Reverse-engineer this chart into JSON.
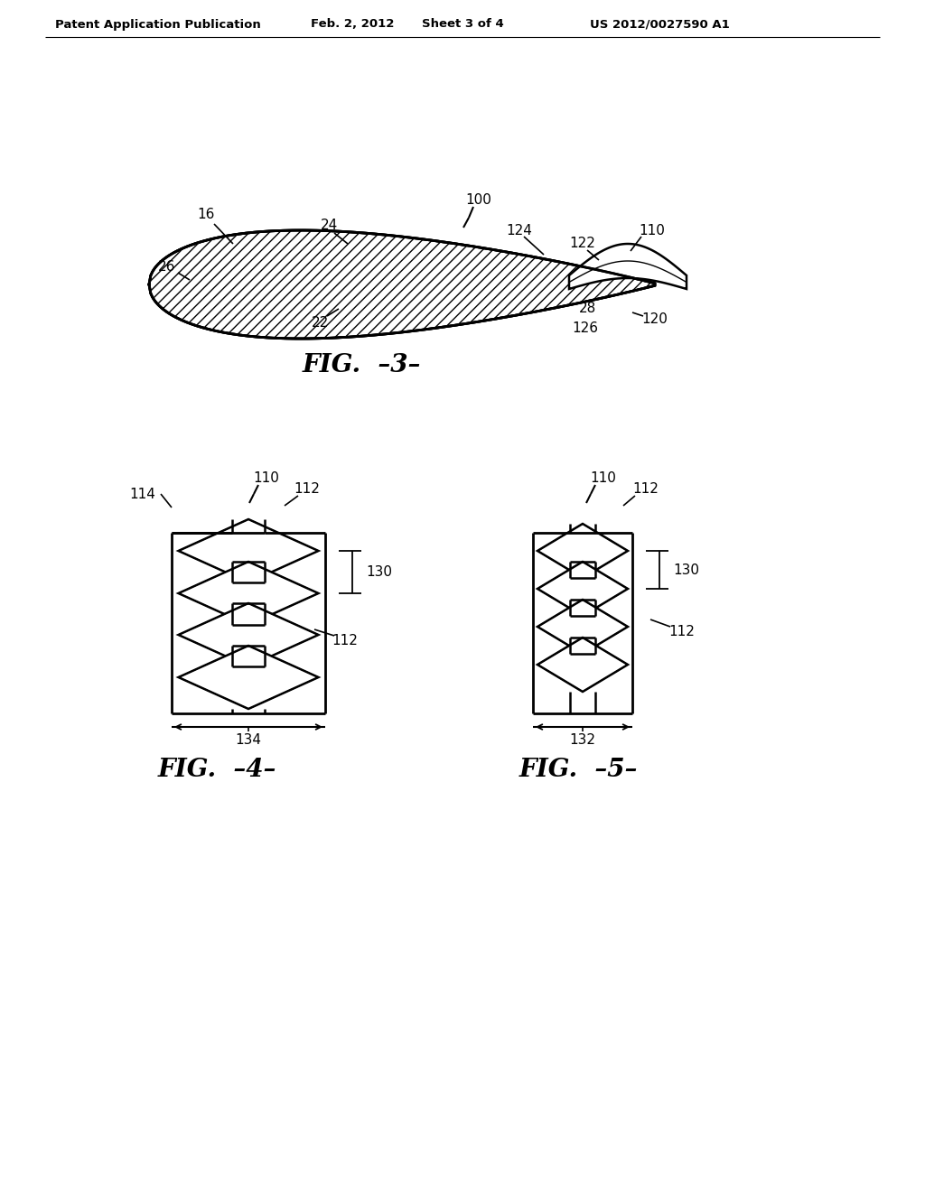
{
  "background_color": "#ffffff",
  "header_text": "Patent Application Publication",
  "header_date": "Feb. 2, 2012",
  "header_sheet": "Sheet 3 of 4",
  "header_patent": "US 2012/0027590 A1",
  "fig3_label": "FIG.  –3–",
  "fig4_label": "FIG.  –4–",
  "fig5_label": "FIG.  –5–"
}
